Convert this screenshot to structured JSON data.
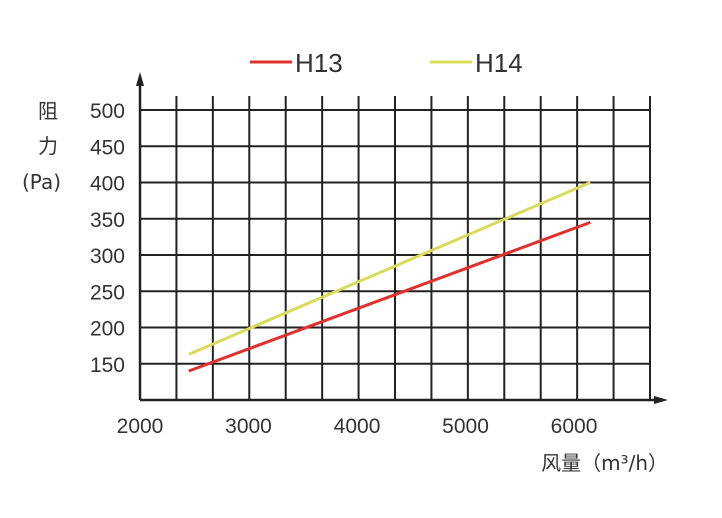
{
  "chart_data": {
    "type": "line",
    "xlabel": "风量（m³/h）",
    "ylabel_lines": [
      "阻",
      "力",
      "(Pa)"
    ],
    "x_ticks": [
      "2000",
      "3000",
      "4000",
      "5000",
      "6000"
    ],
    "y_ticks": [
      "150",
      "200",
      "250",
      "300",
      "350",
      "400",
      "450",
      "500"
    ],
    "xlim": [
      2000,
      6700
    ],
    "ylim": [
      100,
      500
    ],
    "grid": true,
    "legend_position": "top",
    "series": [
      {
        "name": "H13",
        "color": "#e0312f",
        "x": [
          2450,
          6150
        ],
        "y": [
          140,
          345
        ]
      },
      {
        "name": "H14",
        "color": "#d9dc5a",
        "x": [
          2450,
          6150
        ],
        "y": [
          163,
          400
        ]
      }
    ]
  }
}
